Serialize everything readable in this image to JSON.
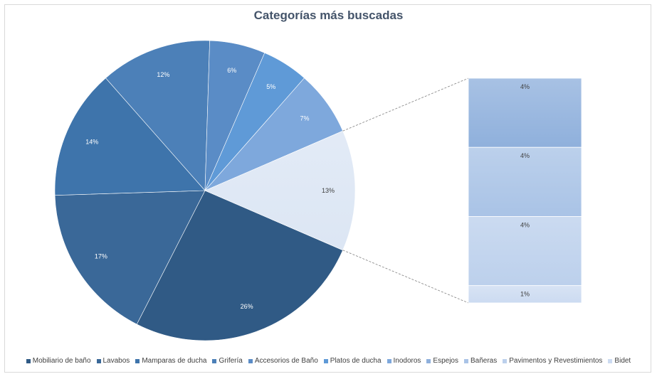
{
  "chart_data": {
    "type": "pie",
    "title": "Categorías más buscadas",
    "legend_position": "bottom",
    "slices": [
      {
        "name": "Mobiliario de baño",
        "value": 26,
        "label": "26%",
        "color": "#305a85"
      },
      {
        "name": "Lavabos",
        "value": 17,
        "label": "17%",
        "color": "#3a6898"
      },
      {
        "name": "Mamparas de ducha",
        "value": 14,
        "label": "14%",
        "color": "#3e74ab"
      },
      {
        "name": "Grifería",
        "value": 12,
        "label": "12%",
        "color": "#4c80b8"
      },
      {
        "name": "Accesorios de Baño",
        "value": 6,
        "label": "6%",
        "color": "#5a8cc6"
      },
      {
        "name": "Platos de ducha",
        "value": 5,
        "label": "5%",
        "color": "#5f9ad7"
      },
      {
        "name": "Inodoros",
        "value": 7,
        "label": "7%",
        "color": "#7ea8dc"
      },
      {
        "name": "Espejos",
        "value": 4,
        "label": "4%",
        "color": "#8fb0dc"
      },
      {
        "name": "Bañeras",
        "value": 4,
        "label": "4%",
        "color": "#a9c3e6"
      },
      {
        "name": "Pavimentos y Revestimientos",
        "value": 4,
        "label": "4%",
        "color": "#bcd0ec"
      },
      {
        "name": "Bidet",
        "value": 1,
        "label": "1%",
        "color": "#ccdbf1"
      }
    ],
    "pie_of_pie": {
      "type": "bar-of-pie",
      "combined_label": "13%",
      "combined_color": "#dce6f4",
      "breakout": [
        "Espejos",
        "Bañeras",
        "Pavimentos y Revestimientos",
        "Bidet"
      ]
    }
  }
}
